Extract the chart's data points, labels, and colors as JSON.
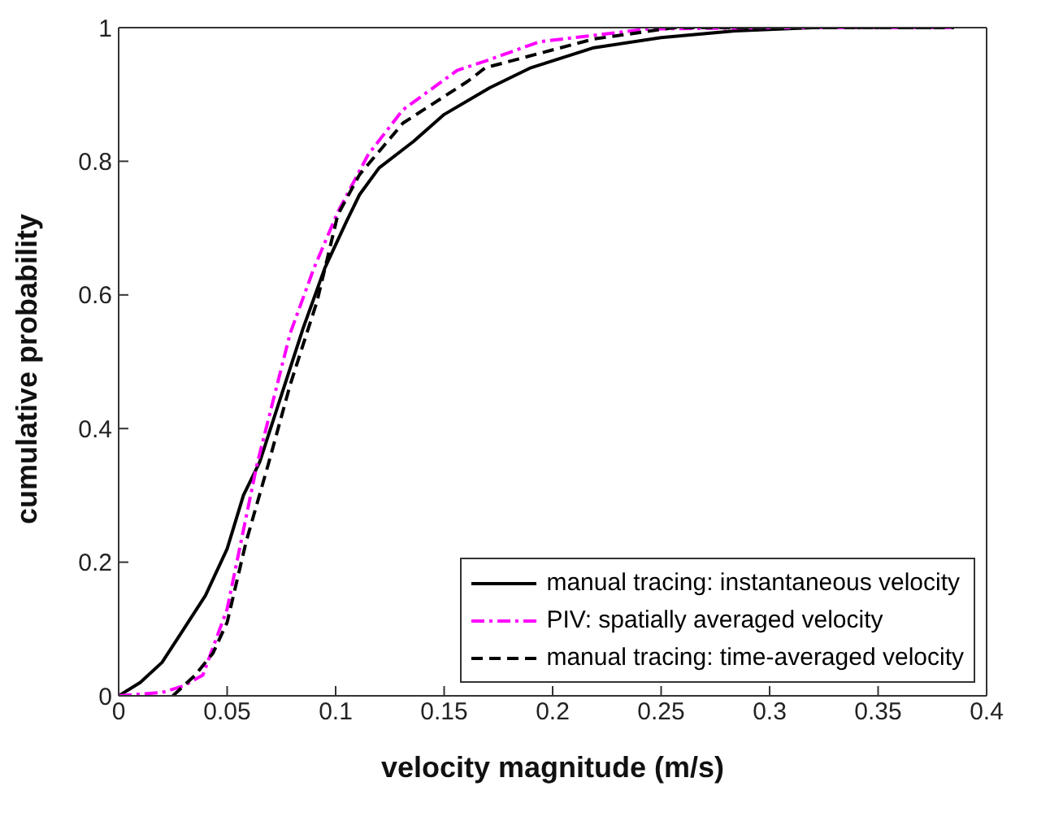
{
  "chart_data": {
    "type": "line",
    "xlabel": "velocity magnitude (m/s)",
    "ylabel": "cumulative probability",
    "xlim": [
      0,
      0.4
    ],
    "xticks": [
      0,
      0.05,
      0.1,
      0.15,
      0.2,
      0.25,
      0.3,
      0.35,
      0.4
    ],
    "ylim": [
      0,
      1
    ],
    "yticks": [
      0,
      0.2,
      0.4,
      0.6,
      0.8,
      1
    ],
    "grid": false,
    "legend": "bottom right",
    "marker": "none",
    "series": [
      {
        "name": "manual tracing: instantaneous velocity",
        "color": "#000000",
        "line_style": "solid",
        "x": [
          0,
          0.01,
          0.02,
          0.03,
          0.04,
          0.05,
          0.0575,
          0.065,
          0.075,
          0.085,
          0.095,
          0.105,
          0.111,
          0.12,
          0.136,
          0.15,
          0.171,
          0.19,
          0.219,
          0.25,
          0.284,
          0.32,
          0.385
        ],
        "values": [
          0,
          0.02,
          0.05,
          0.1,
          0.15,
          0.22,
          0.3,
          0.35,
          0.45,
          0.55,
          0.64,
          0.71,
          0.75,
          0.79,
          0.83,
          0.87,
          0.91,
          0.94,
          0.97,
          0.985,
          0.995,
          1,
          1
        ]
      },
      {
        "name": "PIV: spatially averaged velocity",
        "color": "#ff00ff",
        "line_style": "dashdot",
        "x": [
          0,
          0.02,
          0.03,
          0.0388,
          0.05,
          0.0638,
          0.079,
          0.09,
          0.101,
          0.115,
          0.131,
          0.156,
          0.169,
          0.194,
          0.244,
          0.3,
          0.385
        ],
        "values": [
          0,
          0.005,
          0.015,
          0.031,
          0.13,
          0.347,
          0.542,
          0.64,
          0.724,
          0.81,
          0.877,
          0.936,
          0.95,
          0.979,
          0.998,
          1,
          1
        ]
      },
      {
        "name": "manual tracing: time-averaged velocity",
        "color": "#000000",
        "line_style": "dashed",
        "x": [
          0.025,
          0.035,
          0.0435,
          0.05,
          0.0587,
          0.069,
          0.079,
          0.0914,
          0.101,
          0.111,
          0.131,
          0.161,
          0.169,
          0.219,
          0.256,
          0.3,
          0.385
        ],
        "values": [
          0,
          0.03,
          0.064,
          0.11,
          0.23,
          0.347,
          0.465,
          0.59,
          0.72,
          0.78,
          0.857,
          0.92,
          0.94,
          0.983,
          1,
          1,
          1
        ]
      }
    ]
  }
}
